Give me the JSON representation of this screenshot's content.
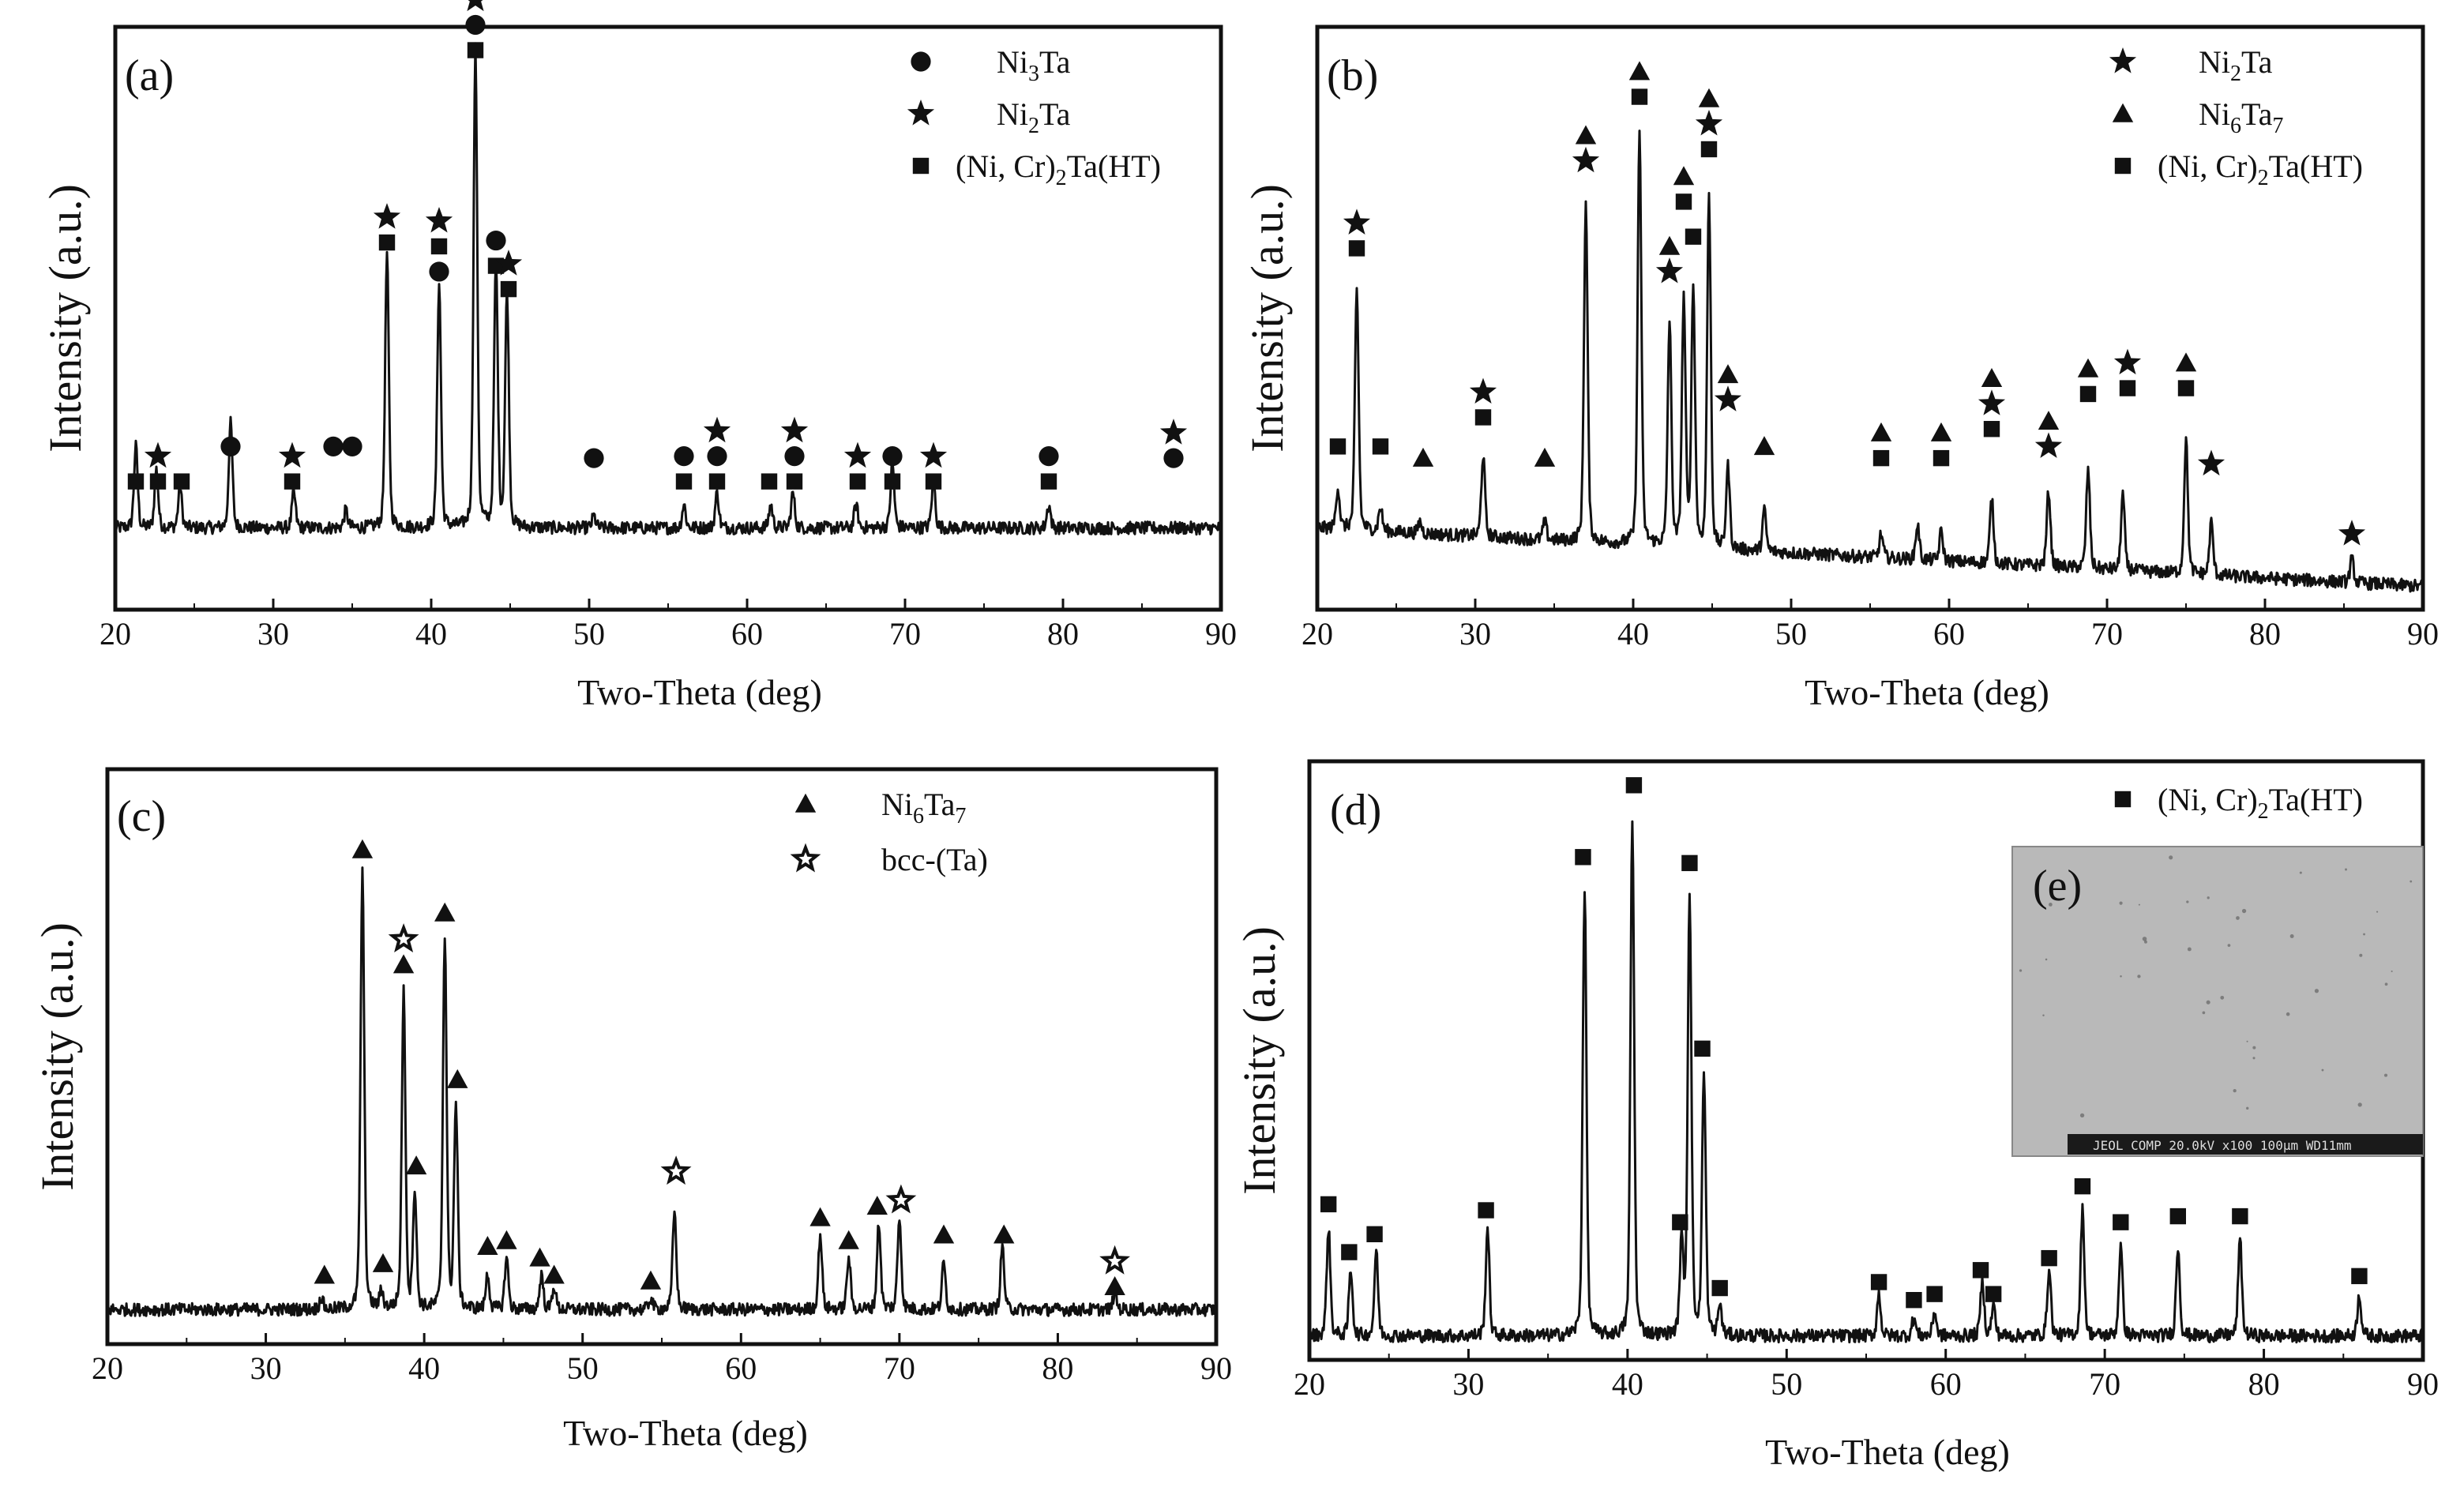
{
  "figure": {
    "colors": {
      "line": "#111111",
      "inset_bg": "#b9b9b9",
      "inset_bar": "#1a1a1a",
      "inset_text": "#dddddd"
    }
  },
  "chart_data": [
    {
      "panel": "(a)",
      "type": "line",
      "xlabel": "Two-Theta (deg)",
      "ylabel": "Intensity (a.u.)",
      "xlim": [
        20,
        90
      ],
      "ylim": [
        0,
        100
      ],
      "xticks": [
        20,
        30,
        40,
        50,
        60,
        70,
        80,
        90
      ],
      "baseline": 14,
      "peaks": [
        {
          "x": 21.3,
          "h": 14
        },
        {
          "x": 22.6,
          "h": 10
        },
        {
          "x": 24.1,
          "h": 7
        },
        {
          "x": 27.3,
          "h": 18
        },
        {
          "x": 31.3,
          "h": 6
        },
        {
          "x": 34.6,
          "h": 3
        },
        {
          "x": 37.2,
          "h": 47
        },
        {
          "x": 40.5,
          "h": 42
        },
        {
          "x": 42.8,
          "h": 82
        },
        {
          "x": 44.1,
          "h": 45
        },
        {
          "x": 44.8,
          "h": 40
        },
        {
          "x": 50.3,
          "h": 2
        },
        {
          "x": 56.0,
          "h": 4
        },
        {
          "x": 58.1,
          "h": 6
        },
        {
          "x": 61.5,
          "h": 4
        },
        {
          "x": 62.9,
          "h": 6
        },
        {
          "x": 66.9,
          "h": 4
        },
        {
          "x": 69.2,
          "h": 11
        },
        {
          "x": 71.8,
          "h": 8
        },
        {
          "x": 79.1,
          "h": 4
        }
      ],
      "legend": [
        {
          "marker": "circle",
          "base": "Ni",
          "sub": "3",
          "tail": "Ta"
        },
        {
          "marker": "star",
          "base": "Ni",
          "sub": "2",
          "tail": "Ta"
        },
        {
          "marker": "square",
          "base": "(Ni, Cr)",
          "sub": "2",
          "tail": "Ta(HT)"
        }
      ],
      "markers": [
        {
          "x": 21.3,
          "y": 22,
          "s": [
            "square"
          ]
        },
        {
          "x": 22.7,
          "y": 22,
          "s": [
            "square",
            "star"
          ]
        },
        {
          "x": 24.2,
          "y": 22,
          "s": [
            "square"
          ]
        },
        {
          "x": 27.3,
          "y": 28,
          "s": [
            "circle"
          ]
        },
        {
          "x": 31.2,
          "y": 22,
          "s": [
            "square",
            "star"
          ]
        },
        {
          "x": 33.8,
          "y": 28,
          "s": [
            "circle"
          ]
        },
        {
          "x": 35.0,
          "y": 28,
          "s": [
            "circle"
          ]
        },
        {
          "x": 37.2,
          "y": 63,
          "s": [
            "square",
            "star"
          ]
        },
        {
          "x": 40.5,
          "y": 58,
          "s": [
            "circle",
            "square",
            "star"
          ]
        },
        {
          "x": 42.8,
          "y": 96,
          "s": [
            "square",
            "circle",
            "star"
          ]
        },
        {
          "x": 44.1,
          "y": 59,
          "s": [
            "square",
            "circle"
          ]
        },
        {
          "x": 44.9,
          "y": 55,
          "s": [
            "square",
            "star"
          ]
        },
        {
          "x": 50.3,
          "y": 26,
          "s": [
            "circle"
          ]
        },
        {
          "x": 56.0,
          "y": 22,
          "s": [
            "square",
            "circle"
          ]
        },
        {
          "x": 58.1,
          "y": 22,
          "s": [
            "square",
            "circle",
            "star"
          ]
        },
        {
          "x": 61.4,
          "y": 22,
          "s": [
            "square"
          ]
        },
        {
          "x": 63.0,
          "y": 22,
          "s": [
            "square",
            "circle",
            "star"
          ]
        },
        {
          "x": 67.0,
          "y": 22,
          "s": [
            "square",
            "star"
          ]
        },
        {
          "x": 69.2,
          "y": 22,
          "s": [
            "square",
            "circle"
          ]
        },
        {
          "x": 71.8,
          "y": 22,
          "s": [
            "square",
            "star"
          ]
        },
        {
          "x": 79.1,
          "y": 22,
          "s": [
            "square",
            "circle"
          ]
        },
        {
          "x": 87.0,
          "y": 26,
          "s": [
            "circle",
            "star"
          ]
        }
      ]
    },
    {
      "panel": "(b)",
      "type": "line",
      "xlabel": "Two-Theta (deg)",
      "ylabel": "Intensity (a.u.)",
      "xlim": [
        20,
        90
      ],
      "ylim": [
        0,
        100
      ],
      "xticks": [
        20,
        30,
        40,
        50,
        60,
        70,
        80,
        90
      ],
      "baseline": 14,
      "slope": -10,
      "peaks": [
        {
          "x": 21.3,
          "h": 7
        },
        {
          "x": 22.5,
          "h": 41
        },
        {
          "x": 24.0,
          "h": 4
        },
        {
          "x": 26.5,
          "h": 2
        },
        {
          "x": 30.5,
          "h": 14
        },
        {
          "x": 34.4,
          "h": 3
        },
        {
          "x": 37.0,
          "h": 58
        },
        {
          "x": 40.4,
          "h": 71
        },
        {
          "x": 42.3,
          "h": 38
        },
        {
          "x": 43.2,
          "h": 42
        },
        {
          "x": 43.8,
          "h": 44
        },
        {
          "x": 44.8,
          "h": 60
        },
        {
          "x": 46.0,
          "h": 14
        },
        {
          "x": 48.3,
          "h": 7
        },
        {
          "x": 55.7,
          "h": 4
        },
        {
          "x": 58.0,
          "h": 6
        },
        {
          "x": 59.5,
          "h": 5
        },
        {
          "x": 62.7,
          "h": 11
        },
        {
          "x": 66.3,
          "h": 13
        },
        {
          "x": 68.8,
          "h": 17
        },
        {
          "x": 71.0,
          "h": 13
        },
        {
          "x": 75.0,
          "h": 23
        },
        {
          "x": 76.6,
          "h": 9
        },
        {
          "x": 85.5,
          "h": 4
        }
      ],
      "legend": [
        {
          "marker": "star",
          "base": "Ni",
          "sub": "2",
          "tail": "Ta"
        },
        {
          "marker": "triangle",
          "base": "Ni",
          "sub": "6",
          "tail": "Ta7"
        },
        {
          "marker": "square",
          "base": "(Ni, Cr)",
          "sub": "2",
          "tail": "Ta(HT)"
        }
      ],
      "markers": [
        {
          "x": 21.3,
          "y": 28,
          "s": [
            "square"
          ]
        },
        {
          "x": 22.5,
          "y": 62,
          "s": [
            "square",
            "star"
          ]
        },
        {
          "x": 24.0,
          "y": 28,
          "s": [
            "square"
          ]
        },
        {
          "x": 26.7,
          "y": 26,
          "s": [
            "triangle"
          ]
        },
        {
          "x": 30.5,
          "y": 33,
          "s": [
            "square",
            "star"
          ]
        },
        {
          "x": 34.4,
          "y": 26,
          "s": [
            "triangle"
          ]
        },
        {
          "x": 37.0,
          "y": 77,
          "s": [
            "star",
            "triangle"
          ]
        },
        {
          "x": 40.4,
          "y": 88,
          "s": [
            "square",
            "triangle"
          ]
        },
        {
          "x": 42.3,
          "y": 58,
          "s": [
            "star",
            "triangle"
          ]
        },
        {
          "x": 43.2,
          "y": 70,
          "s": [
            "square",
            "triangle"
          ]
        },
        {
          "x": 43.8,
          "y": 64,
          "s": [
            "square"
          ]
        },
        {
          "x": 44.8,
          "y": 79,
          "s": [
            "square",
            "star",
            "triangle"
          ]
        },
        {
          "x": 46.0,
          "y": 36,
          "s": [
            "star",
            "triangle"
          ]
        },
        {
          "x": 48.3,
          "y": 28,
          "s": [
            "triangle"
          ]
        },
        {
          "x": 55.7,
          "y": 26,
          "s": [
            "square",
            "triangle"
          ]
        },
        {
          "x": 59.5,
          "y": 26,
          "s": [
            "square",
            "triangle"
          ]
        },
        {
          "x": 62.7,
          "y": 31,
          "s": [
            "square",
            "star",
            "triangle"
          ]
        },
        {
          "x": 66.3,
          "y": 28,
          "s": [
            "star",
            "triangle"
          ]
        },
        {
          "x": 68.8,
          "y": 37,
          "s": [
            "square",
            "triangle"
          ]
        },
        {
          "x": 71.3,
          "y": 38,
          "s": [
            "square",
            "star"
          ]
        },
        {
          "x": 75.0,
          "y": 38,
          "s": [
            "square",
            "triangle"
          ]
        },
        {
          "x": 76.6,
          "y": 25,
          "s": [
            "star"
          ]
        },
        {
          "x": 85.5,
          "y": 13,
          "s": [
            "star"
          ]
        }
      ]
    },
    {
      "panel": "(c)",
      "type": "line",
      "xlabel": "Two-Theta (deg)",
      "ylabel": "Intensity (a.u.)",
      "xlim": [
        20,
        90
      ],
      "ylim": [
        0,
        100
      ],
      "xticks": [
        20,
        30,
        40,
        50,
        60,
        70,
        80,
        90
      ],
      "baseline": 6,
      "peaks": [
        {
          "x": 33.5,
          "h": 2
        },
        {
          "x": 36.1,
          "h": 76
        },
        {
          "x": 37.3,
          "h": 3
        },
        {
          "x": 38.7,
          "h": 55
        },
        {
          "x": 39.4,
          "h": 20
        },
        {
          "x": 41.3,
          "h": 65
        },
        {
          "x": 42.0,
          "h": 35
        },
        {
          "x": 44.0,
          "h": 6
        },
        {
          "x": 45.2,
          "h": 9
        },
        {
          "x": 47.4,
          "h": 6
        },
        {
          "x": 48.2,
          "h": 4
        },
        {
          "x": 54.3,
          "h": 2
        },
        {
          "x": 55.8,
          "h": 17
        },
        {
          "x": 65.0,
          "h": 13
        },
        {
          "x": 66.8,
          "h": 9
        },
        {
          "x": 68.7,
          "h": 15
        },
        {
          "x": 70.0,
          "h": 16
        },
        {
          "x": 72.8,
          "h": 8
        },
        {
          "x": 76.5,
          "h": 11
        },
        {
          "x": 83.6,
          "h": 3
        }
      ],
      "legend": [
        {
          "marker": "triangle",
          "base": "Ni",
          "sub": "6",
          "tail": "Ta7"
        },
        {
          "marker": "openstar",
          "base": "bcc-(Ta)",
          "sub": "",
          "tail": ""
        }
      ],
      "markers": [
        {
          "x": 33.7,
          "y": 12,
          "s": [
            "triangle"
          ]
        },
        {
          "x": 36.1,
          "y": 86,
          "s": [
            "triangle"
          ]
        },
        {
          "x": 37.4,
          "y": 14,
          "s": [
            "triangle"
          ]
        },
        {
          "x": 38.7,
          "y": 66,
          "s": [
            "triangle",
            "openstar"
          ]
        },
        {
          "x": 39.5,
          "y": 31,
          "s": [
            "triangle"
          ]
        },
        {
          "x": 41.3,
          "y": 75,
          "s": [
            "triangle"
          ]
        },
        {
          "x": 42.1,
          "y": 46,
          "s": [
            "triangle"
          ]
        },
        {
          "x": 44.0,
          "y": 17,
          "s": [
            "triangle"
          ]
        },
        {
          "x": 45.2,
          "y": 18,
          "s": [
            "triangle"
          ]
        },
        {
          "x": 47.3,
          "y": 15,
          "s": [
            "triangle"
          ]
        },
        {
          "x": 48.2,
          "y": 12,
          "s": [
            "triangle"
          ]
        },
        {
          "x": 54.3,
          "y": 11,
          "s": [
            "triangle"
          ]
        },
        {
          "x": 55.9,
          "y": 30,
          "s": [
            "openstar"
          ]
        },
        {
          "x": 65.0,
          "y": 22,
          "s": [
            "triangle"
          ]
        },
        {
          "x": 66.8,
          "y": 18,
          "s": [
            "triangle"
          ]
        },
        {
          "x": 68.6,
          "y": 24,
          "s": [
            "triangle"
          ]
        },
        {
          "x": 70.1,
          "y": 25,
          "s": [
            "openstar"
          ]
        },
        {
          "x": 72.8,
          "y": 19,
          "s": [
            "triangle"
          ]
        },
        {
          "x": 76.6,
          "y": 19,
          "s": [
            "triangle"
          ]
        },
        {
          "x": 83.6,
          "y": 10,
          "s": [
            "triangle",
            "openstar"
          ]
        }
      ]
    },
    {
      "panel": "(d)",
      "type": "line",
      "xlabel": "Two-Theta (deg)",
      "ylabel": "Intensity (a.u.)",
      "xlim": [
        20,
        90
      ],
      "ylim": [
        0,
        100
      ],
      "xticks": [
        20,
        30,
        40,
        50,
        60,
        70,
        80,
        90
      ],
      "baseline": 4,
      "peaks": [
        {
          "x": 21.2,
          "h": 18
        },
        {
          "x": 22.6,
          "h": 11
        },
        {
          "x": 24.2,
          "h": 14
        },
        {
          "x": 31.2,
          "h": 18
        },
        {
          "x": 37.3,
          "h": 75
        },
        {
          "x": 40.3,
          "h": 86
        },
        {
          "x": 43.4,
          "h": 15
        },
        {
          "x": 43.9,
          "h": 74
        },
        {
          "x": 44.8,
          "h": 43
        },
        {
          "x": 45.8,
          "h": 5
        },
        {
          "x": 55.8,
          "h": 7
        },
        {
          "x": 58.0,
          "h": 3
        },
        {
          "x": 59.3,
          "h": 4
        },
        {
          "x": 62.3,
          "h": 9
        },
        {
          "x": 63.0,
          "h": 5
        },
        {
          "x": 66.5,
          "h": 11
        },
        {
          "x": 68.6,
          "h": 21
        },
        {
          "x": 71.0,
          "h": 15
        },
        {
          "x": 74.6,
          "h": 15
        },
        {
          "x": 78.5,
          "h": 16
        },
        {
          "x": 86.0,
          "h": 7
        }
      ],
      "legend": [
        {
          "marker": "square",
          "base": "(Ni, Cr)",
          "sub": "2",
          "tail": "Ta(HT)"
        }
      ],
      "inset": {
        "label": "(e)",
        "caption": "JEOL COMP  20.0kV    x100  100μm WD11mm"
      },
      "markers": [
        {
          "x": 21.2,
          "y": 26,
          "s": [
            "square"
          ]
        },
        {
          "x": 22.5,
          "y": 18,
          "s": [
            "square"
          ]
        },
        {
          "x": 24.1,
          "y": 21,
          "s": [
            "square"
          ]
        },
        {
          "x": 31.1,
          "y": 25,
          "s": [
            "square"
          ]
        },
        {
          "x": 37.2,
          "y": 84,
          "s": [
            "square"
          ]
        },
        {
          "x": 40.4,
          "y": 96,
          "s": [
            "square"
          ]
        },
        {
          "x": 43.3,
          "y": 23,
          "s": [
            "square"
          ]
        },
        {
          "x": 43.9,
          "y": 83,
          "s": [
            "square"
          ]
        },
        {
          "x": 44.7,
          "y": 52,
          "s": [
            "square"
          ]
        },
        {
          "x": 45.8,
          "y": 12,
          "s": [
            "square"
          ]
        },
        {
          "x": 55.8,
          "y": 13,
          "s": [
            "square"
          ]
        },
        {
          "x": 58.0,
          "y": 10,
          "s": [
            "square"
          ]
        },
        {
          "x": 59.3,
          "y": 11,
          "s": [
            "square"
          ]
        },
        {
          "x": 62.2,
          "y": 15,
          "s": [
            "square"
          ]
        },
        {
          "x": 63.0,
          "y": 11,
          "s": [
            "square"
          ]
        },
        {
          "x": 66.5,
          "y": 17,
          "s": [
            "square"
          ]
        },
        {
          "x": 68.6,
          "y": 29,
          "s": [
            "square"
          ]
        },
        {
          "x": 71.0,
          "y": 23,
          "s": [
            "square"
          ]
        },
        {
          "x": 74.6,
          "y": 24,
          "s": [
            "square"
          ]
        },
        {
          "x": 78.5,
          "y": 24,
          "s": [
            "square"
          ]
        },
        {
          "x": 86.0,
          "y": 14,
          "s": [
            "square"
          ]
        }
      ]
    }
  ]
}
